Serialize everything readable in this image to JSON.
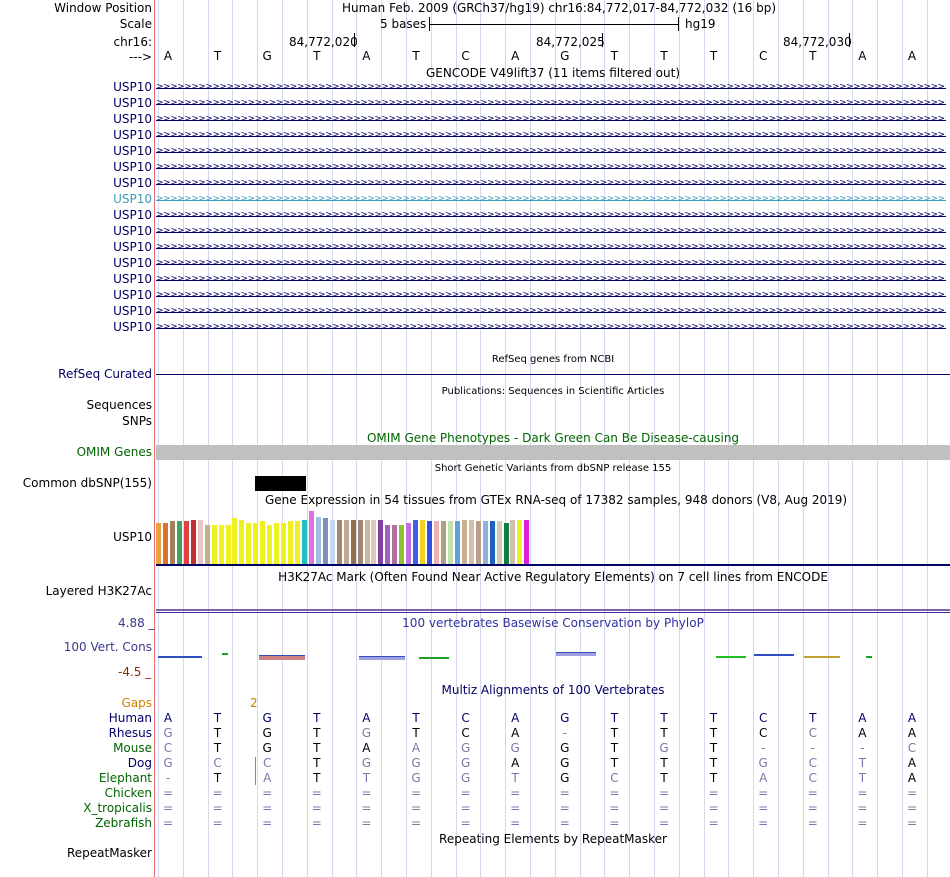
{
  "position": {
    "window_position_label": "Window Position",
    "scale_label": "Scale",
    "chrom_label": "chr16:",
    "arrow_label": "--->",
    "assembly_text": "Human Feb. 2009 (GRCh37/hg19)   chr16:84,772,017-84,772,032 (16 bp)",
    "scale_text": "5 bases",
    "db_text": "hg19",
    "coords": [
      "84,772,020",
      "84,772,025",
      "84,772,030"
    ]
  },
  "sequence": [
    "A",
    "T",
    "G",
    "T",
    "A",
    "T",
    "C",
    "A",
    "G",
    "T",
    "T",
    "T",
    "C",
    "T",
    "A",
    "A"
  ],
  "gencode": {
    "title": "GENCODE V49lift37 (11 items filtered out)",
    "rows": [
      "USP10",
      "USP10",
      "USP10",
      "USP10",
      "USP10",
      "USP10",
      "USP10",
      "USP10",
      "USP10",
      "USP10",
      "USP10",
      "USP10",
      "USP10",
      "USP10",
      "USP10",
      "USP10"
    ],
    "highlighted_index": 7
  },
  "refseq": {
    "title": "RefSeq genes from NCBI",
    "label": "RefSeq Curated"
  },
  "publications": {
    "title": "Publications: Sequences in Scientific Articles",
    "label_sequences": "Sequences",
    "label_snps": "SNPs"
  },
  "omim": {
    "title": "OMIM Gene Phenotypes - Dark Green Can Be Disease-causing",
    "label": "OMIM Genes"
  },
  "dbsnp": {
    "title": "Short Genetic Variants from dbSNP release 155",
    "label": "Common dbSNP(155)"
  },
  "gtex": {
    "title": "Gene Expression in 54 tissues from GTEx RNA-seq of 17382 samples, 948 donors (V8, Aug 2019)",
    "label": "USP10",
    "bar_values": [
      0.69,
      0.69,
      0.71,
      0.71,
      0.71,
      0.74,
      0.74,
      0.65,
      0.65,
      0.65,
      0.65,
      0.76,
      0.74,
      0.68,
      0.68,
      0.71,
      0.65,
      0.68,
      0.68,
      0.71,
      0.71,
      0.74,
      0.88,
      0.79,
      0.76,
      0.74,
      0.74,
      0.74,
      0.74,
      0.74,
      0.74,
      0.74,
      0.74,
      0.65,
      0.65,
      0.65,
      0.68,
      0.74,
      0.74,
      0.71,
      0.71,
      0.71,
      0.71,
      0.71,
      0.74,
      0.74,
      0.71,
      0.71,
      0.71,
      0.71,
      0.68,
      0.74,
      0.74,
      0.74
    ],
    "bar_colors": [
      "#f0a040",
      "#e07030",
      "#a08060",
      "#40a060",
      "#e04040",
      "#c03030",
      "#e8c8c0",
      "#c0b090",
      "#f0f020",
      "#f0f020",
      "#f0f020",
      "#f0f020",
      "#f0f020",
      "#f0f020",
      "#f0f020",
      "#f0f020",
      "#f0f020",
      "#f0f020",
      "#f0f020",
      "#f0f020",
      "#f0f020",
      "#20c0c0",
      "#e070e0",
      "#a0c0e0",
      "#8090c0",
      "#c0d8f0",
      "#a08870",
      "#c0a890",
      "#907050",
      "#a08870",
      "#c8b8a0",
      "#e0c8b8",
      "#8040a0",
      "#a060c0",
      "#b070a0",
      "#90c030",
      "#c070e0",
      "#4060e0",
      "#f0d020",
      "#3050e0",
      "#f0b0b0",
      "#b0a080",
      "#c0e0b0",
      "#60a0e0",
      "#c8b090",
      "#d8c0a8",
      "#b8a088",
      "#90b0e0",
      "#2060c0",
      "#d0d0b0",
      "#108040",
      "#d0c0b0",
      "#f0f030",
      "#e020e0"
    ]
  },
  "h3k27ac": {
    "title": "H3K27Ac Mark (Often Found Near Active Regulatory Elements) on 7 cell lines from ENCODE",
    "label": "Layered H3K27Ac"
  },
  "phylop": {
    "title": "100 vertebrates Basewise Conservation by PhyloP",
    "label": "100 Vert. Cons",
    "max": "4.88 _",
    "min": "-4.5 _"
  },
  "multiz": {
    "title": "Multiz Alignments of 100 Vertebrates",
    "gaps_label": "Gaps",
    "gaps_value": "2",
    "species": [
      {
        "name": "Human",
        "bases": [
          "A",
          "T",
          "G",
          "T",
          "A",
          "T",
          "C",
          "A",
          "G",
          "T",
          "T",
          "T",
          "C",
          "T",
          "A",
          "A"
        ]
      },
      {
        "name": "Rhesus",
        "bases": [
          "G",
          "T",
          "G",
          "T",
          "G",
          "T",
          "C",
          "A",
          "-",
          "T",
          "T",
          "T",
          "C",
          "C",
          "A",
          "A"
        ]
      },
      {
        "name": "Mouse",
        "bases": [
          "C",
          "T",
          "G",
          "T",
          "A",
          "A",
          "G",
          "G",
          "G",
          "T",
          "G",
          "T",
          "-",
          "-",
          "-",
          "C"
        ]
      },
      {
        "name": "Dog",
        "bases": [
          "G",
          "C",
          "C",
          "T",
          "G",
          "G",
          "G",
          "A",
          "G",
          "T",
          "T",
          "T",
          "G",
          "C",
          "T",
          "A"
        ]
      },
      {
        "name": "Elephant",
        "bases": [
          "-",
          "T",
          "A",
          "T",
          "T",
          "G",
          "G",
          "T",
          "G",
          "C",
          "T",
          "T",
          "A",
          "C",
          "T",
          "A"
        ]
      },
      {
        "name": "Chicken",
        "bases": [
          "=",
          "=",
          "=",
          "=",
          "=",
          "=",
          "=",
          "=",
          "=",
          "=",
          "=",
          "=",
          "=",
          "=",
          "=",
          "="
        ]
      },
      {
        "name": "X_tropicalis",
        "bases": [
          "=",
          "=",
          "=",
          "=",
          "=",
          "=",
          "=",
          "=",
          "=",
          "=",
          "=",
          "=",
          "=",
          "=",
          "=",
          "="
        ]
      },
      {
        "name": "Zebrafish",
        "bases": [
          "=",
          "=",
          "=",
          "=",
          "=",
          "=",
          "=",
          "=",
          "=",
          "=",
          "=",
          "=",
          "=",
          "=",
          "=",
          "="
        ]
      }
    ]
  },
  "repeatmasker": {
    "title": "Repeating Elements by RepeatMasker",
    "label": "RepeatMasker"
  },
  "colors": {
    "navy": "#000066",
    "highlight": "#3a9fbf",
    "omim_gray": "#c0c0c0",
    "green": "#006400",
    "gaps_orange": "#d08000",
    "phylop_blue": "#3030a0",
    "phylop_max": "#3a3a8a",
    "phylop_min": "#883000"
  }
}
